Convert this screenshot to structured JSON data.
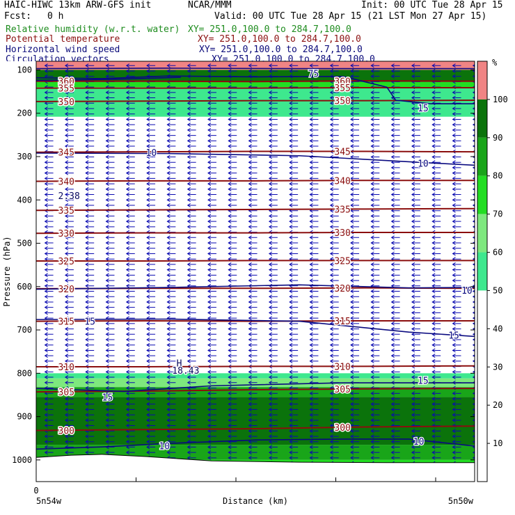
{
  "header": {
    "model": "HAIC-HIWC 13km ARW-GFS init",
    "org": "NCAR/MMM",
    "init": "Init: 00 UTC Tue 28 Apr 15",
    "fcst_label": "Fcst:",
    "fcst_value": "0 h",
    "valid": "Valid: 00 UTC Tue 28 Apr 15 (21 LST Mon 27 Apr 15)"
  },
  "legend": [
    {
      "field": "Relative humidity (w.r.t. water)",
      "xy": "XY= 251.0,100.0 to 284.7,100.0",
      "color": "#1e8c1e"
    },
    {
      "field": "Potential temperature",
      "xy": "XY= 251.0,100.0 to 284.7,100.0",
      "color": "#8b1010"
    },
    {
      "field": "Horizontal wind speed",
      "xy": "XY= 251.0,100.0 to 284.7,100.0",
      "color": "#0a0a7a"
    },
    {
      "field": "Circulation vectors",
      "xy": "XY= 251.0,100.0 to 284.7,100.0",
      "color": "#0a0a7a"
    }
  ],
  "colors": {
    "theta": "#8b0e0e",
    "wind": "#0a0a80",
    "vector": "#0a0ab0"
  },
  "chart_data": {
    "type": "cross-section",
    "ylabel": "Pressure (hPa)",
    "xlabel": "Distance (km)",
    "ylim": [
      1050,
      80
    ],
    "yticks": [
      100,
      200,
      300,
      400,
      500,
      600,
      700,
      800,
      900,
      1000
    ],
    "xticks": [
      0
    ],
    "x_endpoints": [
      "5n54w",
      "5n50w"
    ],
    "colorbar": {
      "unit": "%",
      "levels": [
        10,
        20,
        30,
        40,
        50,
        60,
        70,
        80,
        90,
        100
      ],
      "bands": [
        {
          "from": 0,
          "to": 50,
          "color": "#ffffff"
        },
        {
          "from": 50,
          "to": 60,
          "color": "#3ee88e"
        },
        {
          "from": 60,
          "to": 70,
          "color": "#7ee87e"
        },
        {
          "from": 70,
          "to": 80,
          "color": "#22dd22"
        },
        {
          "from": 80,
          "to": 90,
          "color": "#19a519"
        },
        {
          "from": 90,
          "to": 100,
          "color": "#0b730b"
        },
        {
          "from": 100,
          "to": 110,
          "color": "#f08484"
        }
      ]
    },
    "rh_layers": [
      {
        "top": 80,
        "bottom": 100,
        "value": 100
      },
      {
        "top": 100,
        "bottom": 128,
        "value": 95
      },
      {
        "top": 128,
        "bottom": 140,
        "value": 75
      },
      {
        "top": 140,
        "bottom": 208,
        "value": 55
      },
      {
        "top": 800,
        "bottom": 812,
        "value": 55
      },
      {
        "top": 812,
        "bottom": 832,
        "value": 65
      },
      {
        "top": 832,
        "bottom": 855,
        "value": 85
      },
      {
        "top": 855,
        "bottom": 965,
        "value": 95
      },
      {
        "top": 965,
        "bottom": 1000,
        "value": 85
      },
      {
        "top": 1000,
        "bottom": 1050,
        "value": 75
      }
    ],
    "theta_contours": [
      {
        "label": "360",
        "y": [
          126,
          126,
          127,
          125,
          126
        ]
      },
      {
        "label": "355",
        "y": [
          142,
          142,
          142,
          141,
          141
        ]
      },
      {
        "label": "350",
        "y": [
          173,
          172,
          171,
          171,
          170
        ]
      },
      {
        "label": "345",
        "y": [
          290,
          289,
          288,
          288,
          289
        ]
      },
      {
        "label": "340",
        "y": [
          357,
          356,
          356,
          355,
          355
        ]
      },
      {
        "label": "335",
        "y": [
          424,
          423,
          422,
          421,
          420
        ]
      },
      {
        "label": "330",
        "y": [
          477,
          476,
          476,
          475,
          475
        ]
      },
      {
        "label": "325",
        "y": [
          541,
          541,
          540,
          540,
          540
        ]
      },
      {
        "label": "320",
        "y": [
          605,
          604,
          604,
          603,
          604
        ]
      },
      {
        "label": "315",
        "y": [
          680,
          679,
          680,
          679,
          679
        ]
      },
      {
        "label": "310",
        "y": [
          785,
          785,
          784,
          784,
          783
        ]
      },
      {
        "label": "305",
        "y": [
          843,
          841,
          838,
          836,
          835
        ]
      },
      {
        "label": "300",
        "y": [
          932,
          930,
          928,
          924,
          922
        ]
      }
    ],
    "contour_x": [
      0,
      0.25,
      0.5,
      0.75,
      1
    ],
    "labels": [
      {
        "text": "H",
        "kind": "extreme",
        "x": 0.32,
        "p": 776
      },
      {
        "text": "18.43",
        "kind": "extreme",
        "x": 0.31,
        "p": 793
      },
      {
        "text": "2.38",
        "kind": "extreme",
        "x": 0.05,
        "p": 390
      },
      {
        "text": "10",
        "kind": "wind",
        "x": 0.25,
        "p": 290
      },
      {
        "text": "10",
        "kind": "wind",
        "x": 0.87,
        "p": 315
      },
      {
        "text": "10",
        "kind": "wind",
        "x": 0.97,
        "p": 608
      },
      {
        "text": "15",
        "kind": "wind",
        "x": 0.15,
        "p": 855
      },
      {
        "text": "15",
        "kind": "wind",
        "x": 0.87,
        "p": 816
      },
      {
        "text": "15",
        "kind": "wind",
        "x": 0.94,
        "p": 712
      },
      {
        "text": "15",
        "kind": "wind",
        "x": 0.87,
        "p": 188
      },
      {
        "text": "15",
        "kind": "wind",
        "x": 0.11,
        "p": 680
      },
      {
        "text": "10",
        "kind": "wind",
        "x": 0.28,
        "p": 967
      },
      {
        "text": "10",
        "kind": "wind",
        "x": 0.86,
        "p": 957
      },
      {
        "text": "75",
        "kind": "wind",
        "x": 0.62,
        "p": 108
      }
    ]
  }
}
